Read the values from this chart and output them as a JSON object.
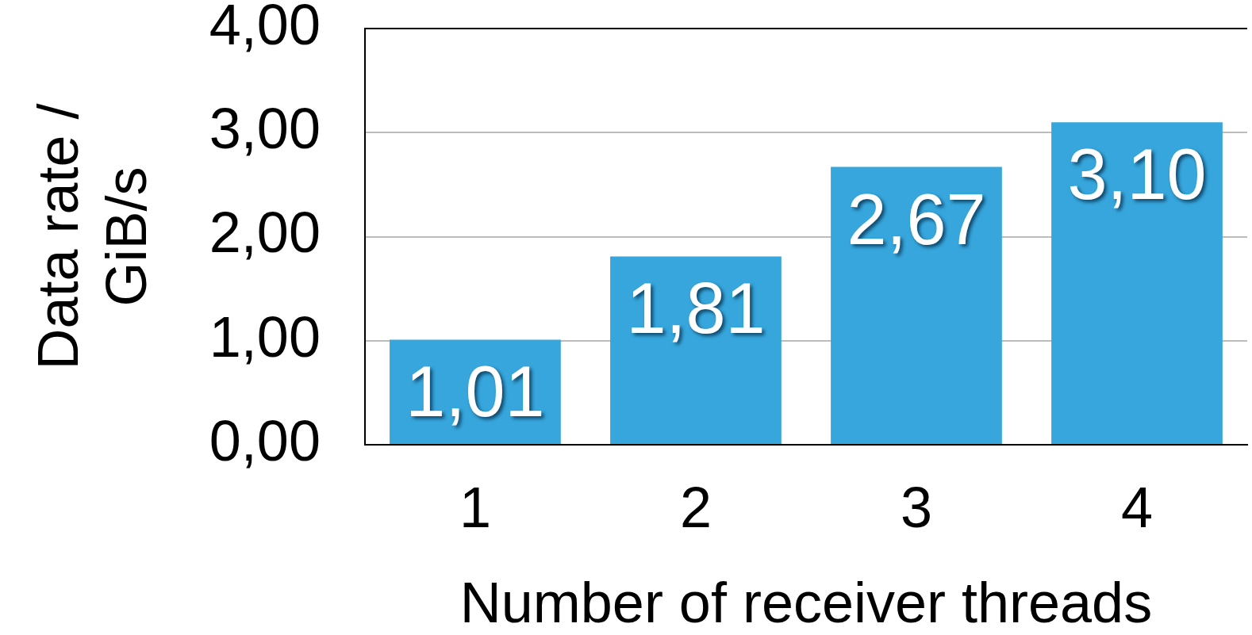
{
  "chart_data": {
    "type": "bar",
    "xlabel": "Number of receiver threads",
    "ylabel": "Data rate / GiB/s",
    "categories": [
      "1",
      "2",
      "3",
      "4"
    ],
    "values": [
      1.01,
      1.81,
      2.67,
      3.1
    ],
    "value_labels": [
      "1,01",
      "1,81",
      "2,67",
      "3,10"
    ],
    "color": "#36a6dc",
    "ylim": [
      0,
      4
    ],
    "yticks": [
      {
        "value": 0,
        "label": "0,00"
      },
      {
        "value": 1,
        "label": "1,00"
      },
      {
        "value": 2,
        "label": "2,00"
      },
      {
        "value": 3,
        "label": "3,00"
      },
      {
        "value": 4,
        "label": "4,00"
      }
    ],
    "grid": "y"
  }
}
